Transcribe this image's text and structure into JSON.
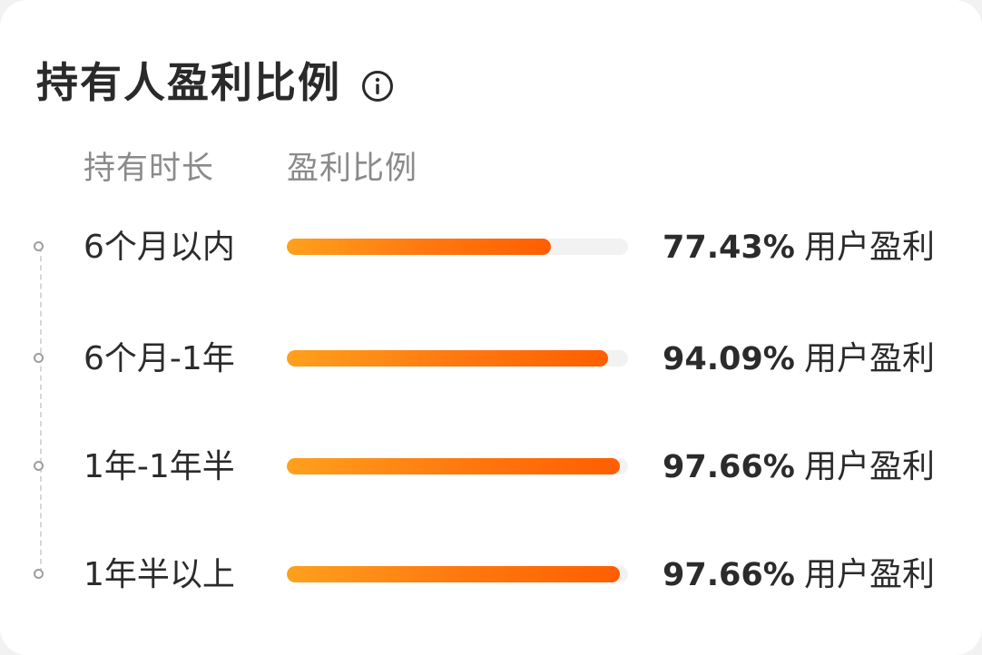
{
  "card": {
    "title": "持有人盈利比例",
    "info_icon": "info-circle-icon"
  },
  "header": {
    "col_period": "持有时长",
    "col_ratio": "盈利比例"
  },
  "rows": [
    {
      "period": "6个月以内",
      "percent_value": 77.43,
      "percent_text": "77.43%",
      "suffix": "用户盈利"
    },
    {
      "period": "6个月-1年",
      "percent_value": 94.09,
      "percent_text": "94.09%",
      "suffix": "用户盈利"
    },
    {
      "period": "1年-1年半",
      "percent_value": 97.66,
      "percent_text": "97.66%",
      "suffix": "用户盈利"
    },
    {
      "period": "1年半以上",
      "percent_value": 97.66,
      "percent_text": "97.66%",
      "suffix": "用户盈利"
    }
  ],
  "colors": {
    "bar_start": "#ffa01c",
    "bar_end": "#ff5e00",
    "track": "#f2f2f2"
  }
}
